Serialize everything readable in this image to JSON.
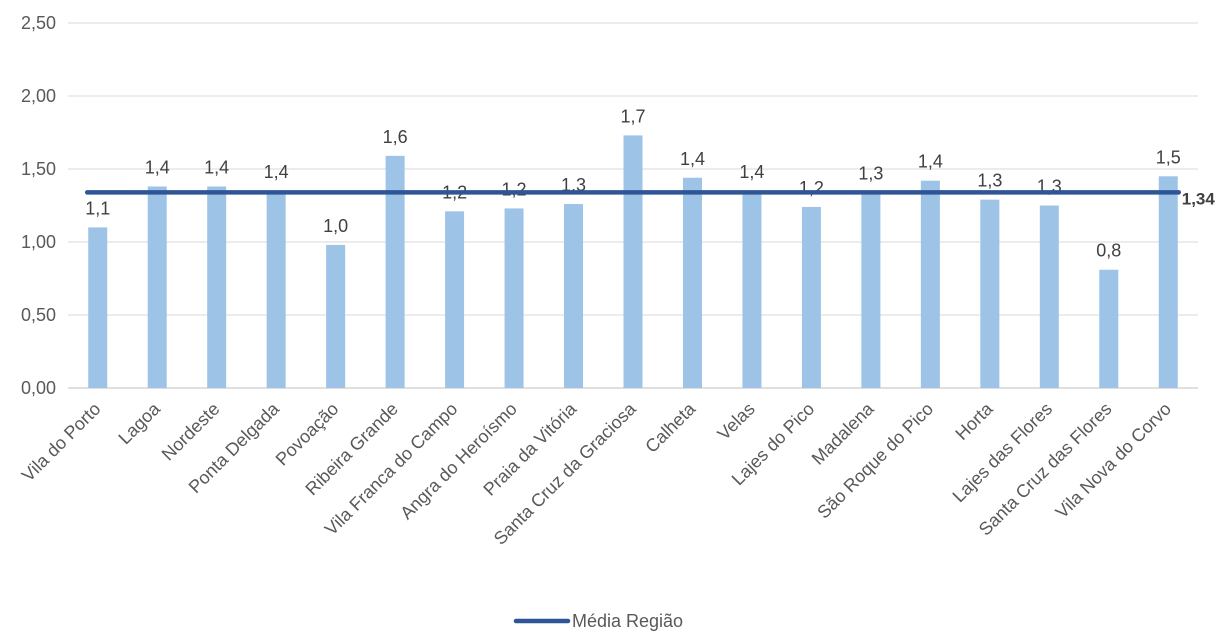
{
  "chart_data": {
    "type": "bar",
    "categories": [
      "Vila do Porto",
      "Lagoa",
      "Nordeste",
      "Ponta Delgada",
      "Povoação",
      "Ribeira Grande",
      "Vila Franca do Campo",
      "Angra do Heroísmo",
      "Praia da Vitória",
      "Santa Cruz da Graciosa",
      "Calheta",
      "Velas",
      "Lajes do Pico",
      "Madalena",
      "São Roque do Pico",
      "Horta",
      "Lajes das Flores",
      "Santa Cruz das Flores",
      "Vila Nova do Corvo"
    ],
    "values": [
      1.1,
      1.38,
      1.38,
      1.35,
      0.98,
      1.59,
      1.21,
      1.23,
      1.26,
      1.73,
      1.44,
      1.35,
      1.24,
      1.34,
      1.42,
      1.29,
      1.25,
      0.81,
      1.45
    ],
    "data_labels": [
      "1,1",
      "1,4",
      "1,4",
      "1,4",
      "1,0",
      "1,6",
      "1,2",
      "1,2",
      "1,3",
      "1,7",
      "1,4",
      "1,4",
      "1,2",
      "1,3",
      "1,4",
      "1,3",
      "1,3",
      "0,8",
      "1,5"
    ],
    "average": {
      "name": "Média Região",
      "value": 1.34,
      "label": "1,34"
    },
    "ylim": [
      0,
      2.5
    ],
    "yticks": [
      0,
      0.5,
      1.0,
      1.5,
      2.0,
      2.5
    ],
    "ytick_labels": [
      "0,00",
      "0,50",
      "1,00",
      "1,50",
      "2,00",
      "2,50"
    ],
    "title": "",
    "xlabel": "",
    "ylabel": "",
    "grid": true,
    "legend_position": "bottom",
    "colors": {
      "bar": "#9DC3E6",
      "average_line": "#2F5597",
      "grid": "#D9D9D9",
      "axis": "#BFBFBF"
    }
  }
}
